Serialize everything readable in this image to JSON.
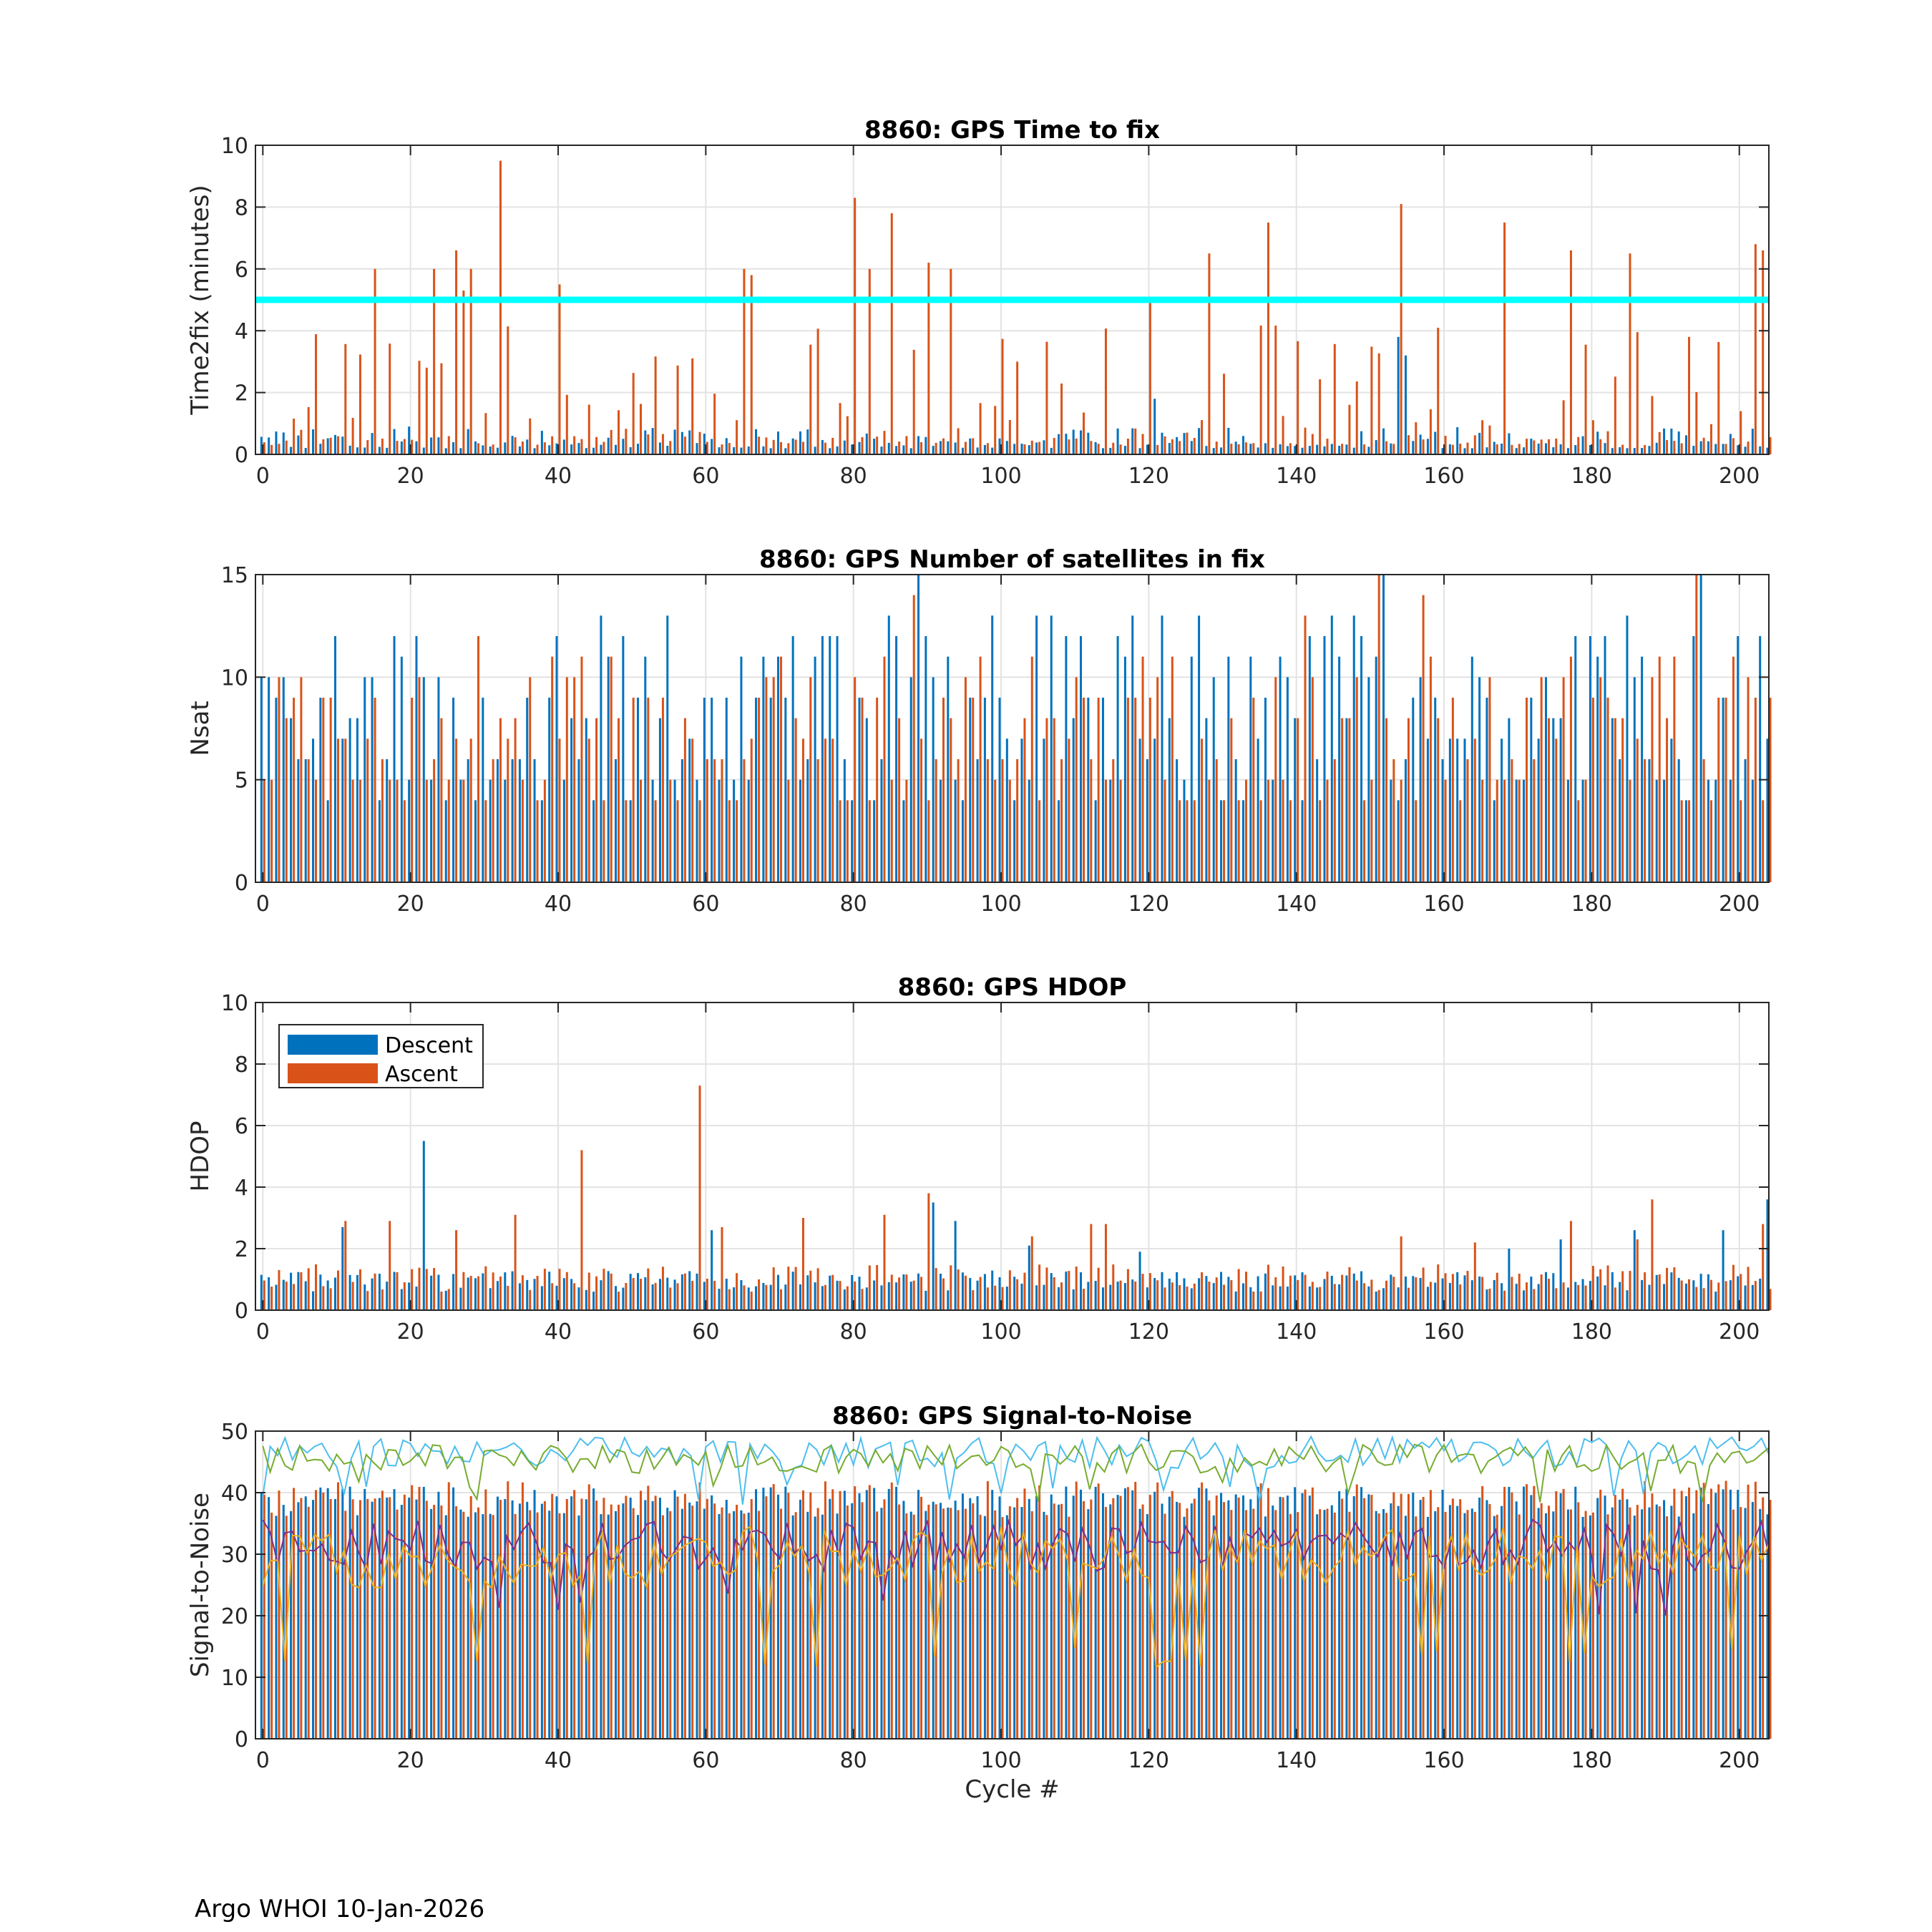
{
  "footer": "Argo WHOI 10-Jan-2026",
  "colors": {
    "descent": "#0072BD",
    "ascent": "#D95319",
    "threshold": "#00FFFF",
    "snr_lines": [
      "#4DBEEE",
      "#77AC30",
      "#7E2F8E",
      "#EDB120"
    ]
  },
  "chart_data": [
    {
      "type": "bar",
      "title": "8860: GPS Time to fix",
      "xlabel": "",
      "ylabel": "Time2fix (minutes)",
      "xlim": [
        -1,
        204
      ],
      "ylim": [
        0,
        10
      ],
      "xticks": [
        "0",
        "20",
        "40",
        "60",
        "80",
        "100",
        "120",
        "140",
        "160",
        "180",
        "200"
      ],
      "yticks": [
        "0",
        "2",
        "4",
        "6",
        "8",
        "10"
      ],
      "grid": true,
      "threshold": 5,
      "ascent_spikes": [
        [
          15,
          6.0
        ],
        [
          23,
          6.0
        ],
        [
          26,
          6.6
        ],
        [
          27,
          5.3
        ],
        [
          28,
          6.0
        ],
        [
          32,
          9.5
        ],
        [
          40,
          5.5
        ],
        [
          65,
          6.0
        ],
        [
          66,
          5.8
        ],
        [
          80,
          8.3
        ],
        [
          82,
          6.0
        ],
        [
          85,
          7.8
        ],
        [
          90,
          6.2
        ],
        [
          93,
          6.0
        ],
        [
          120,
          5.0
        ],
        [
          128,
          6.5
        ],
        [
          136,
          7.5
        ],
        [
          154,
          8.1
        ],
        [
          168,
          7.5
        ],
        [
          177,
          6.6
        ],
        [
          185,
          6.5
        ],
        [
          202,
          6.8
        ],
        [
          203,
          6.6
        ]
      ],
      "descent_spikes": [
        [
          154,
          3.8
        ],
        [
          155,
          3.2
        ],
        [
          121,
          1.8
        ]
      ],
      "ascent_range": [
        0.3,
        4.2
      ],
      "descent_range": [
        0.2,
        0.9
      ]
    },
    {
      "type": "bar",
      "title": "8860: GPS Number of satellites in fix",
      "xlabel": "",
      "ylabel": "Nsat",
      "xlim": [
        -1,
        204
      ],
      "ylim": [
        0,
        15
      ],
      "xticks": [
        "0",
        "20",
        "40",
        "60",
        "80",
        "100",
        "120",
        "140",
        "160",
        "180",
        "200"
      ],
      "yticks": [
        "0",
        "5",
        "10",
        "15"
      ],
      "grid": true,
      "ascent_range": [
        4,
        11
      ],
      "descent_range": [
        4,
        13
      ],
      "ascent_spikes": [
        [
          29,
          12
        ],
        [
          43,
          11
        ],
        [
          88,
          14
        ],
        [
          141,
          13
        ],
        [
          151,
          15
        ],
        [
          157,
          14
        ],
        [
          194,
          15
        ],
        [
          199,
          11
        ]
      ],
      "descent_spikes": [
        [
          10,
          12
        ],
        [
          46,
          13
        ],
        [
          72,
          12
        ],
        [
          76,
          12
        ],
        [
          89,
          15
        ],
        [
          99,
          13
        ],
        [
          105,
          13
        ],
        [
          116,
          12
        ],
        [
          118,
          13
        ],
        [
          122,
          13
        ],
        [
          127,
          13
        ],
        [
          142,
          12
        ],
        [
          145,
          13
        ],
        [
          152,
          15
        ],
        [
          185,
          13
        ],
        [
          195,
          15
        ],
        [
          200,
          12
        ]
      ]
    },
    {
      "type": "bar",
      "title": "8860: GPS HDOP",
      "xlabel": "",
      "ylabel": "HDOP",
      "xlim": [
        -1,
        204
      ],
      "ylim": [
        0,
        10
      ],
      "xticks": [
        "0",
        "20",
        "40",
        "60",
        "80",
        "100",
        "120",
        "140",
        "160",
        "180",
        "200"
      ],
      "yticks": [
        "0",
        "2",
        "4",
        "6",
        "8",
        "10"
      ],
      "grid": true,
      "legend": {
        "location": "top-left",
        "entries": [
          "Descent",
          "Ascent"
        ]
      },
      "ascent_range": [
        0.6,
        1.5
      ],
      "descent_range": [
        0.6,
        1.3
      ],
      "ascent_spikes": [
        [
          11,
          2.9
        ],
        [
          17,
          2.9
        ],
        [
          26,
          2.6
        ],
        [
          34,
          3.1
        ],
        [
          43,
          5.2
        ],
        [
          59,
          7.3
        ],
        [
          62,
          2.7
        ],
        [
          73,
          3.0
        ],
        [
          84,
          3.1
        ],
        [
          90,
          3.8
        ],
        [
          104,
          2.4
        ],
        [
          112,
          2.8
        ],
        [
          114,
          2.8
        ],
        [
          154,
          2.4
        ],
        [
          164,
          2.2
        ],
        [
          177,
          2.9
        ],
        [
          186,
          2.3
        ],
        [
          188,
          3.6
        ],
        [
          203,
          2.8
        ]
      ],
      "descent_spikes": [
        [
          11,
          2.7
        ],
        [
          22,
          5.5
        ],
        [
          61,
          2.6
        ],
        [
          91,
          3.5
        ],
        [
          94,
          2.9
        ],
        [
          104,
          2.1
        ],
        [
          119,
          1.9
        ],
        [
          169,
          2.0
        ],
        [
          176,
          2.3
        ],
        [
          186,
          2.6
        ],
        [
          198,
          2.6
        ],
        [
          204,
          3.6
        ]
      ]
    },
    {
      "type": "bar",
      "title": "8860: GPS Signal-to-Noise",
      "xlabel": "Cycle #",
      "ylabel": "Signal-to-Noise",
      "xlim": [
        -1,
        204
      ],
      "ylim": [
        0,
        50
      ],
      "xticks": [
        "0",
        "20",
        "40",
        "60",
        "80",
        "100",
        "120",
        "140",
        "160",
        "180",
        "200"
      ],
      "yticks": [
        "0",
        "10",
        "20",
        "30",
        "40",
        "50"
      ],
      "grid": true,
      "bar_ranges": {
        "descent": [
          36,
          41
        ],
        "ascent": [
          36,
          42
        ]
      },
      "series": [
        {
          "name": "line1",
          "color_index": 0,
          "mean": 46.5,
          "spread": 2.6,
          "min": 38,
          "max": 50
        },
        {
          "name": "line2",
          "color_index": 1,
          "mean": 45.5,
          "spread": 2.4,
          "min": 38,
          "max": 50
        },
        {
          "name": "line3",
          "color_index": 2,
          "mean": 31.5,
          "spread": 4.2,
          "min": 20,
          "max": 42
        },
        {
          "name": "line4",
          "color_index": 3,
          "mean": 29.5,
          "spread": 5.0,
          "min": 11,
          "max": 40
        }
      ]
    }
  ]
}
